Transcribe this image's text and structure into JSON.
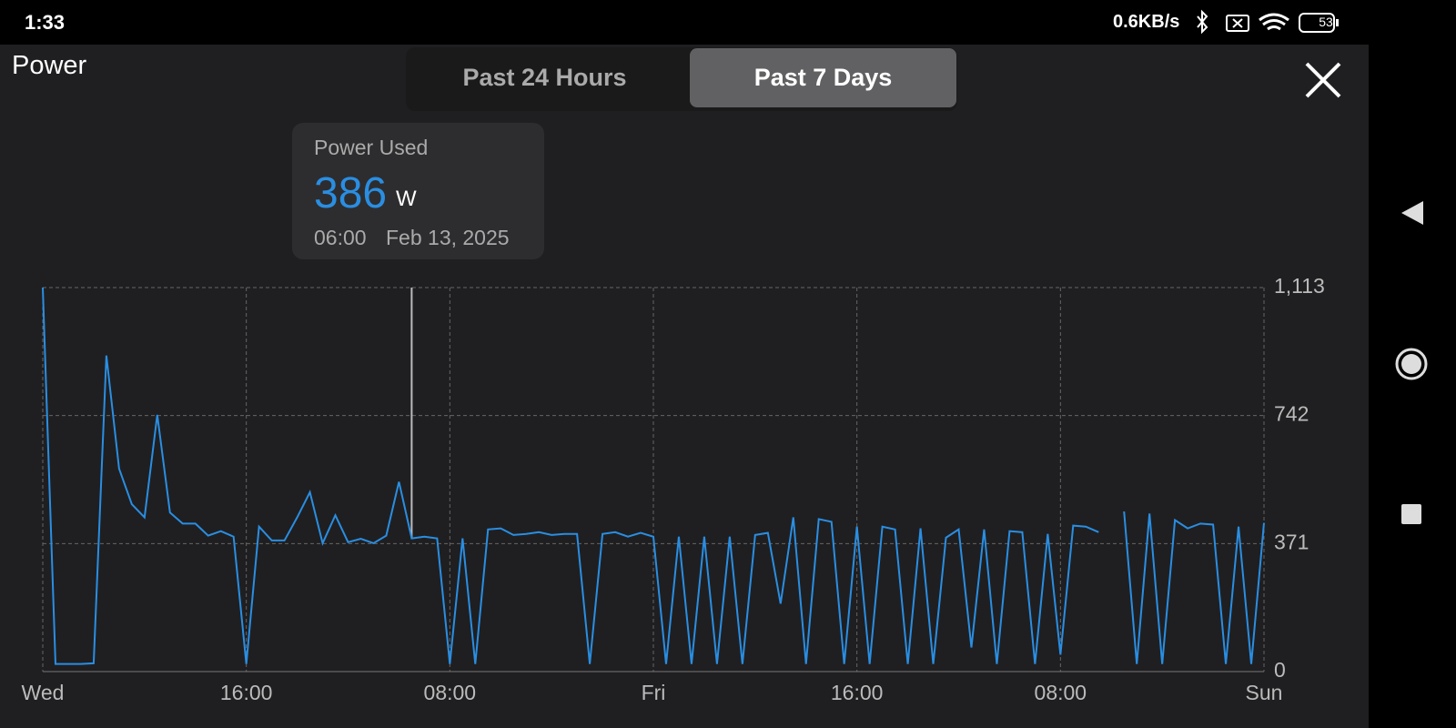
{
  "status_bar": {
    "time": "1:33",
    "speed": "0.6KB/s",
    "battery": "53"
  },
  "header": {
    "title": "Power"
  },
  "tabs": [
    "Past 24 Hours",
    "Past 7 Days"
  ],
  "tooltip": {
    "label": "Power Used",
    "value": "386",
    "unit": "W",
    "time": "06:00",
    "date": "Feb 13, 2025"
  },
  "chart_data": {
    "type": "line",
    "x": [
      0,
      1,
      2,
      3,
      4,
      5,
      6,
      7,
      8,
      9,
      10,
      11,
      12,
      13,
      14,
      15,
      16,
      17,
      18,
      19,
      20,
      21,
      22,
      23,
      24,
      25,
      26,
      27,
      28,
      29,
      30,
      31,
      32,
      33,
      34,
      35,
      36,
      37,
      38,
      39,
      40,
      41,
      42,
      43,
      44,
      45,
      46,
      47,
      48,
      49,
      50,
      51,
      52,
      53,
      54,
      55,
      56,
      57,
      58,
      59,
      60,
      61,
      62,
      63,
      64,
      65,
      66,
      67,
      68,
      69,
      70,
      71,
      72,
      73,
      74,
      75,
      76,
      77,
      78,
      79,
      80,
      81,
      82,
      83,
      84,
      85,
      86,
      87,
      88,
      89,
      90,
      91,
      92,
      93,
      94,
      95,
      96
    ],
    "series": [
      {
        "name": "Power Used",
        "color": "#2a8ee2",
        "values": [
          1113,
          22,
          22,
          22,
          24,
          916,
          588,
          485,
          447,
          744,
          461,
          429,
          429,
          394,
          407,
          391,
          22,
          420,
          380,
          380,
          447,
          520,
          372,
          453,
          375,
          385,
          372,
          394,
          550,
          386,
          391,
          386,
          22,
          386,
          22,
          412,
          415,
          396,
          399,
          404,
          396,
          399,
          399,
          22,
          399,
          404,
          391,
          402,
          391,
          22,
          391,
          22,
          391,
          22,
          391,
          22,
          396,
          402,
          197,
          447,
          22,
          442,
          434,
          22,
          420,
          22,
          420,
          412,
          22,
          415,
          22,
          388,
          412,
          70,
          412,
          22,
          407,
          404,
          22,
          399,
          49,
          423,
          420,
          404,
          null,
          464,
          22,
          458,
          22,
          439,
          415,
          429,
          426,
          22,
          420,
          22,
          431
        ]
      }
    ],
    "xlim": [
      0,
      96
    ],
    "xticks": [
      {
        "value": 0,
        "label": "Wed"
      },
      {
        "value": 16,
        "label": "16:00"
      },
      {
        "value": 32,
        "label": "08:00"
      },
      {
        "value": 48,
        "label": "Fri"
      },
      {
        "value": 64,
        "label": "16:00"
      },
      {
        "value": 80,
        "label": "08:00"
      },
      {
        "value": 96,
        "label": "Sun"
      }
    ],
    "ylim": [
      0,
      1113
    ],
    "yticks": [
      0,
      371,
      742,
      {
        "value": 1113,
        "label": "1,113"
      }
    ],
    "grid": true
  }
}
